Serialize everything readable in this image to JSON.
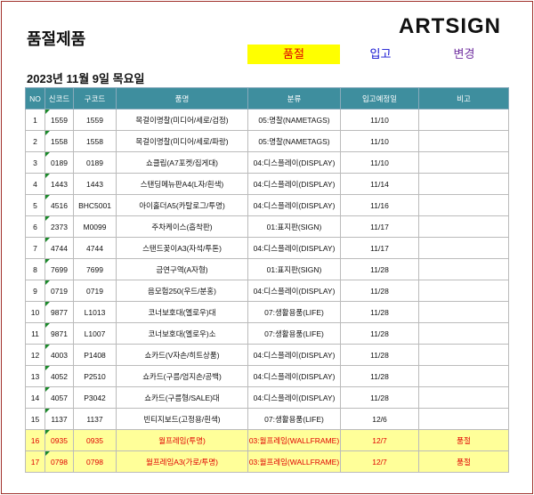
{
  "header": {
    "title": "품절제품",
    "logo": "ARTSIGN",
    "buttons": [
      "품절",
      "입고",
      "변경"
    ],
    "date": "2023년 11월 9일 목요일"
  },
  "table": {
    "columns": [
      "NO",
      "신코드",
      "구코드",
      "품명",
      "분류",
      "입고예정일",
      "비고"
    ],
    "rows": [
      [
        1,
        "1559",
        "1559",
        "목걸이명찰(미디어/세로/검정)",
        "05:명찰(NAMETAGS)",
        "11/10",
        null
      ],
      [
        2,
        "1558",
        "1558",
        "목걸이명찰(미디어/세로/파랑)",
        "05:명찰(NAMETAGS)",
        "11/10",
        null
      ],
      [
        3,
        "0189",
        "0189",
        "쇼클립(A7포켓/집게대)",
        "04:디스플레이(DISPLAY)",
        "11/10",
        null
      ],
      [
        4,
        "1443",
        "1443",
        "스탠딩메뉴판A4(L자/흰색)",
        "04:디스플레이(DISPLAY)",
        "11/14",
        null
      ],
      [
        5,
        "4516",
        "BHC5001",
        "아이홀더A5(카탈로그/투명)",
        "04:디스플레이(DISPLAY)",
        "11/16",
        null
      ],
      [
        6,
        "2373",
        "M0099",
        "주차케이스(흡착판)",
        "01:표지판(SIGN)",
        "11/17",
        null
      ],
      [
        7,
        "4744",
        "4744",
        "스탠드꽂이A3(자석/투톤)",
        "04:디스플레이(DISPLAY)",
        "11/17",
        null
      ],
      [
        8,
        "7699",
        "7699",
        "금연구역(A자형)",
        "01:표지판(SIGN)",
        "11/28",
        null
      ],
      [
        9,
        "0719",
        "0719",
        "음모험250(우드/분홍)",
        "04:디스플레이(DISPLAY)",
        "11/28",
        null
      ],
      [
        10,
        "9877",
        "L1013",
        "코너보호대(옐로우)대",
        "07:생활용품(LIFE)",
        "11/28",
        null
      ],
      [
        11,
        "9871",
        "L1007",
        "코너보호대(옐로우)소",
        "07:생활용품(LIFE)",
        "11/28",
        null
      ],
      [
        12,
        "4003",
        "P1408",
        "쇼카드(V자손/히트상품)",
        "04:디스플레이(DISPLAY)",
        "11/28",
        null
      ],
      [
        13,
        "4052",
        "P2510",
        "쇼카드(구름/엄지손/공백)",
        "04:디스플레이(DISPLAY)",
        "11/28",
        null
      ],
      [
        14,
        "4057",
        "P3042",
        "쇼카드(구름형/SALE)대",
        "04:디스플레이(DISPLAY)",
        "11/28",
        null
      ],
      [
        15,
        "1137",
        "1137",
        "빈티지보드(고정용/흰색)",
        "07:생활용품(LIFE)",
        "12/6",
        null
      ],
      [
        16,
        "0935",
        "0935",
        "월프레임(투명)",
        "03:월프레임(WALLFRAME)",
        "12/7",
        "품절"
      ],
      [
        17,
        "0798",
        "0798",
        "월프레임A3(가로/투명)",
        "03:월프레임(WALLFRAME)",
        "12/7",
        "품절"
      ]
    ]
  }
}
